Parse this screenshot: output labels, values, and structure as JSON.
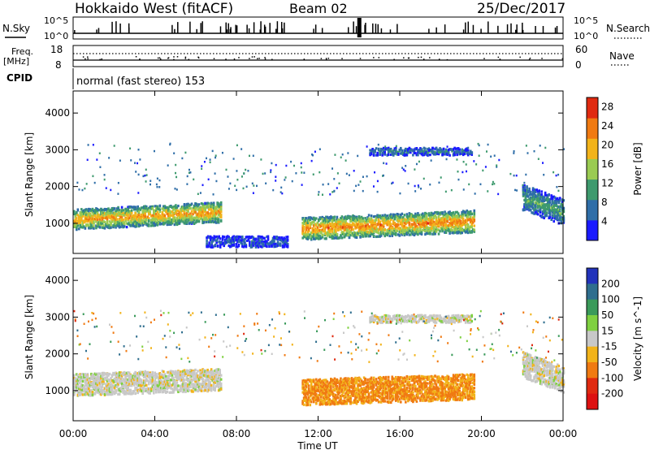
{
  "header": {
    "station": "Hokkaido West (fitACF)",
    "beam": "Beam 02",
    "date": "25/Dec/2017",
    "cpid_label": "CPID",
    "cpid_value": "normal (fast stereo) 153"
  },
  "strips": {
    "nsky_label": "N.Sky",
    "nsky_top": "10^5",
    "nsky_bottom": "10^0",
    "nsearch_label": "N.Search",
    "freq_label_1": "Freq.",
    "freq_label_2": "[MHz]",
    "freq_top": "18",
    "freq_bottom": "8",
    "nave_label": "Nave",
    "nave_top": "60",
    "nave_bottom": "0"
  },
  "chart_data": [
    {
      "type": "heatmap",
      "title": "Power",
      "xlabel": "Time UT",
      "ylabel": "Slant Range [km]",
      "xticks": [
        "00:00",
        "04:00",
        "08:00",
        "12:00",
        "16:00",
        "20:00",
        "00:00"
      ],
      "xlim_hours": [
        0,
        24
      ],
      "ylim_km": [
        180,
        4600
      ],
      "yticks": [
        1000,
        2000,
        3000,
        4000
      ],
      "colorbar": {
        "label": "Power [dB]",
        "ticks": [
          4,
          8,
          12,
          16,
          20,
          24,
          28
        ],
        "range": [
          0,
          30
        ],
        "colors": [
          "#1a1aff",
          "#2f6ea8",
          "#3e9a6e",
          "#9acb52",
          "#f2b31a",
          "#f07a12",
          "#e02a10"
        ]
      },
      "regions": [
        {
          "name": "early echo band",
          "t": [
            0,
            7.2
          ],
          "r_center_start": 1100,
          "r_center_end": 1300,
          "r_width": 550,
          "level": 22
        },
        {
          "name": "main evening echo",
          "t": [
            11.2,
            19.6
          ],
          "r_center_start": 850,
          "r_center_end": 1050,
          "r_width": 600,
          "level": 24
        },
        {
          "name": "upper scatter",
          "t": [
            14.5,
            19.5
          ],
          "r_center_start": 2950,
          "r_center_end": 2950,
          "r_width": 200,
          "level": 8
        },
        {
          "name": "late echo",
          "t": [
            22,
            24
          ],
          "r_center_start": 1700,
          "r_center_end": 1300,
          "r_width": 700,
          "level": 12
        },
        {
          "name": "near ground scatter",
          "t": [
            6.5,
            10.5
          ],
          "r_center_start": 500,
          "r_center_end": 500,
          "r_width": 300,
          "level": 6
        }
      ]
    },
    {
      "type": "heatmap",
      "title": "Velocity",
      "xlabel": "Time UT",
      "ylabel": "Slant Range [km]",
      "xticks": [
        "00:00",
        "04:00",
        "08:00",
        "12:00",
        "16:00",
        "20:00",
        "00:00"
      ],
      "xlim_hours": [
        0,
        24
      ],
      "ylim_km": [
        180,
        4600
      ],
      "yticks": [
        1000,
        2000,
        3000,
        4000
      ],
      "colorbar": {
        "label": "Velocity [m s^-1]",
        "ticks": [
          200,
          100,
          50,
          15,
          -15,
          -50,
          -100,
          -200
        ],
        "colors": [
          "#2233bb",
          "#2f6e8e",
          "#3a9a5a",
          "#7fd040",
          "#c8c8c8",
          "#f2b31a",
          "#f07a12",
          "#e02a10",
          "#dd1111"
        ]
      },
      "regions": [
        {
          "name": "early echo band",
          "t": [
            0,
            7.2
          ],
          "r_center_start": 1150,
          "r_center_end": 1300,
          "r_width": 600,
          "velocity": 0
        },
        {
          "name": "main evening echo",
          "t": [
            11.2,
            19.6
          ],
          "r_center_start": 950,
          "r_center_end": 1100,
          "r_width": 700,
          "velocity": -55
        },
        {
          "name": "upper scatter",
          "t": [
            14.5,
            19.5
          ],
          "r_center_start": 2950,
          "r_center_end": 2950,
          "r_width": 200,
          "velocity": 0
        },
        {
          "name": "late echo",
          "t": [
            22,
            24
          ],
          "r_center_start": 1700,
          "r_center_end": 1300,
          "r_width": 700,
          "velocity": 0
        }
      ]
    }
  ]
}
